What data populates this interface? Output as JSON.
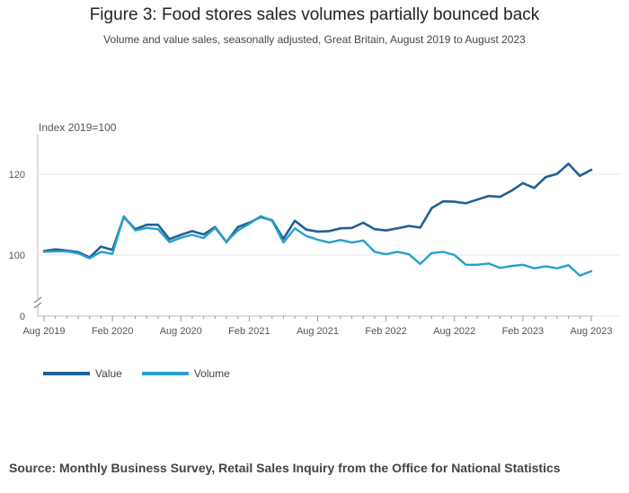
{
  "title": "Figure 3: Food stores sales volumes partially bounced back",
  "subtitle": "Volume and value sales, seasonally adjusted, Great Britain, August 2019 to August 2023",
  "source": "Source: Monthly Business Survey, Retail Sales Inquiry from the Office for National Statistics",
  "colors": {
    "value": "#206095",
    "volume": "#27a0cc",
    "grid": "#e6e6e6",
    "axis": "#bbbbbb",
    "text": "#555555"
  },
  "legend": [
    {
      "name": "Value",
      "color": "#206095"
    },
    {
      "name": "Volume",
      "color": "#27a0cc"
    }
  ],
  "chart_data": {
    "type": "line",
    "title": "Figure 3: Food stores sales volumes partially bounced back",
    "ylabel": "Index 2019=100",
    "xlabel": "",
    "ylim": [
      0,
      130
    ],
    "axis_break": true,
    "yticks": [
      0,
      100,
      120
    ],
    "xticks": [
      "Aug 2019",
      "Feb 2020",
      "Aug 2020",
      "Feb 2021",
      "Aug 2021",
      "Feb 2022",
      "Aug 2022",
      "Feb 2023",
      "Aug 2023"
    ],
    "x_start": "Aug 2019",
    "x_end": "Aug 2023",
    "legend_position": "bottom-left",
    "series": [
      {
        "name": "Value",
        "values": [
          101.0,
          101.4,
          101.1,
          100.7,
          99.4,
          102.1,
          101.3,
          109.4,
          106.4,
          107.5,
          107.5,
          103.9,
          105.0,
          105.9,
          105.1,
          106.9,
          103.2,
          106.9,
          108.0,
          109.4,
          108.6,
          104.0,
          108.5,
          106.3,
          105.8,
          105.9,
          106.6,
          106.7,
          108.0,
          106.4,
          106.1,
          106.6,
          107.2,
          106.8,
          111.6,
          113.3,
          113.2,
          112.8,
          113.7,
          114.6,
          114.4,
          115.9,
          117.8,
          116.6,
          119.3,
          120.1,
          122.6,
          119.6,
          121.1
        ]
      },
      {
        "name": "Volume",
        "values": [
          100.8,
          100.9,
          100.9,
          100.4,
          99.2,
          100.8,
          100.3,
          109.6,
          106.1,
          106.7,
          106.4,
          103.2,
          104.3,
          105.0,
          104.2,
          106.7,
          103.3,
          106.1,
          107.7,
          109.6,
          108.5,
          103.1,
          106.6,
          104.7,
          103.8,
          103.1,
          103.7,
          103.1,
          103.6,
          100.8,
          100.2,
          100.8,
          100.2,
          97.8,
          100.5,
          100.8,
          100.0,
          97.6,
          97.6,
          97.9,
          96.8,
          97.3,
          97.6,
          96.7,
          97.2,
          96.7,
          97.5,
          94.9,
          96.0
        ]
      }
    ]
  }
}
